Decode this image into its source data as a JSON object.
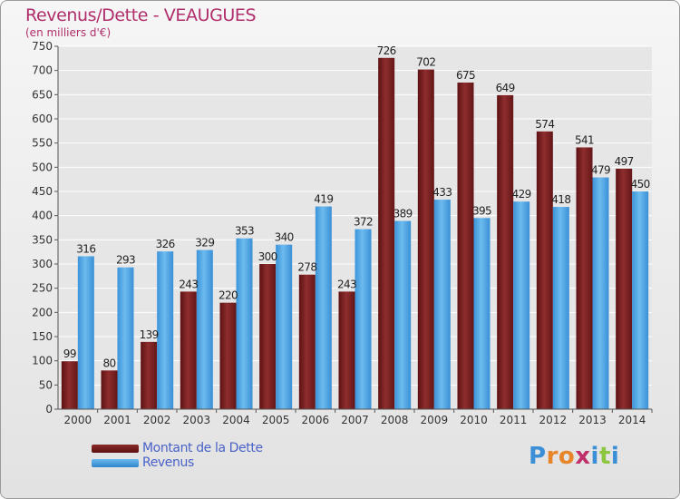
{
  "header": {
    "title": "Revenus/Dette - VEAUGUES",
    "subtitle": "(en milliers d'€)"
  },
  "legend": {
    "debt_label": "Montant de la Dette",
    "revenue_label": "Revenus"
  },
  "logo": {
    "letters": [
      "P",
      "r",
      "o",
      "x",
      "i",
      "t",
      "i"
    ],
    "colors": [
      "#3a8fd6",
      "#e8842a",
      "#e8842a",
      "#c0306a",
      "#3a8fd6",
      "#8cc63f",
      "#3a8fd6"
    ]
  },
  "chart_data": {
    "type": "bar",
    "categories": [
      "2000",
      "2001",
      "2002",
      "2003",
      "2004",
      "2005",
      "2006",
      "2007",
      "2008",
      "2009",
      "2010",
      "2011",
      "2012",
      "2013",
      "2014"
    ],
    "series": [
      {
        "name": "Montant de la Dette",
        "color": "#7a1f20",
        "values": [
          99,
          80,
          139,
          243,
          220,
          300,
          278,
          243,
          726,
          702,
          675,
          649,
          574,
          541,
          497
        ]
      },
      {
        "name": "Revenus",
        "color": "#4aa3e6",
        "values": [
          316,
          293,
          326,
          329,
          353,
          340,
          419,
          372,
          389,
          433,
          395,
          429,
          418,
          479,
          450
        ]
      }
    ],
    "ylim": [
      0,
      750
    ],
    "yticks": [
      0,
      50,
      100,
      150,
      200,
      250,
      300,
      350,
      400,
      450,
      500,
      550,
      600,
      650,
      700,
      750
    ],
    "grid": true,
    "legend_position": "bottom-left"
  }
}
